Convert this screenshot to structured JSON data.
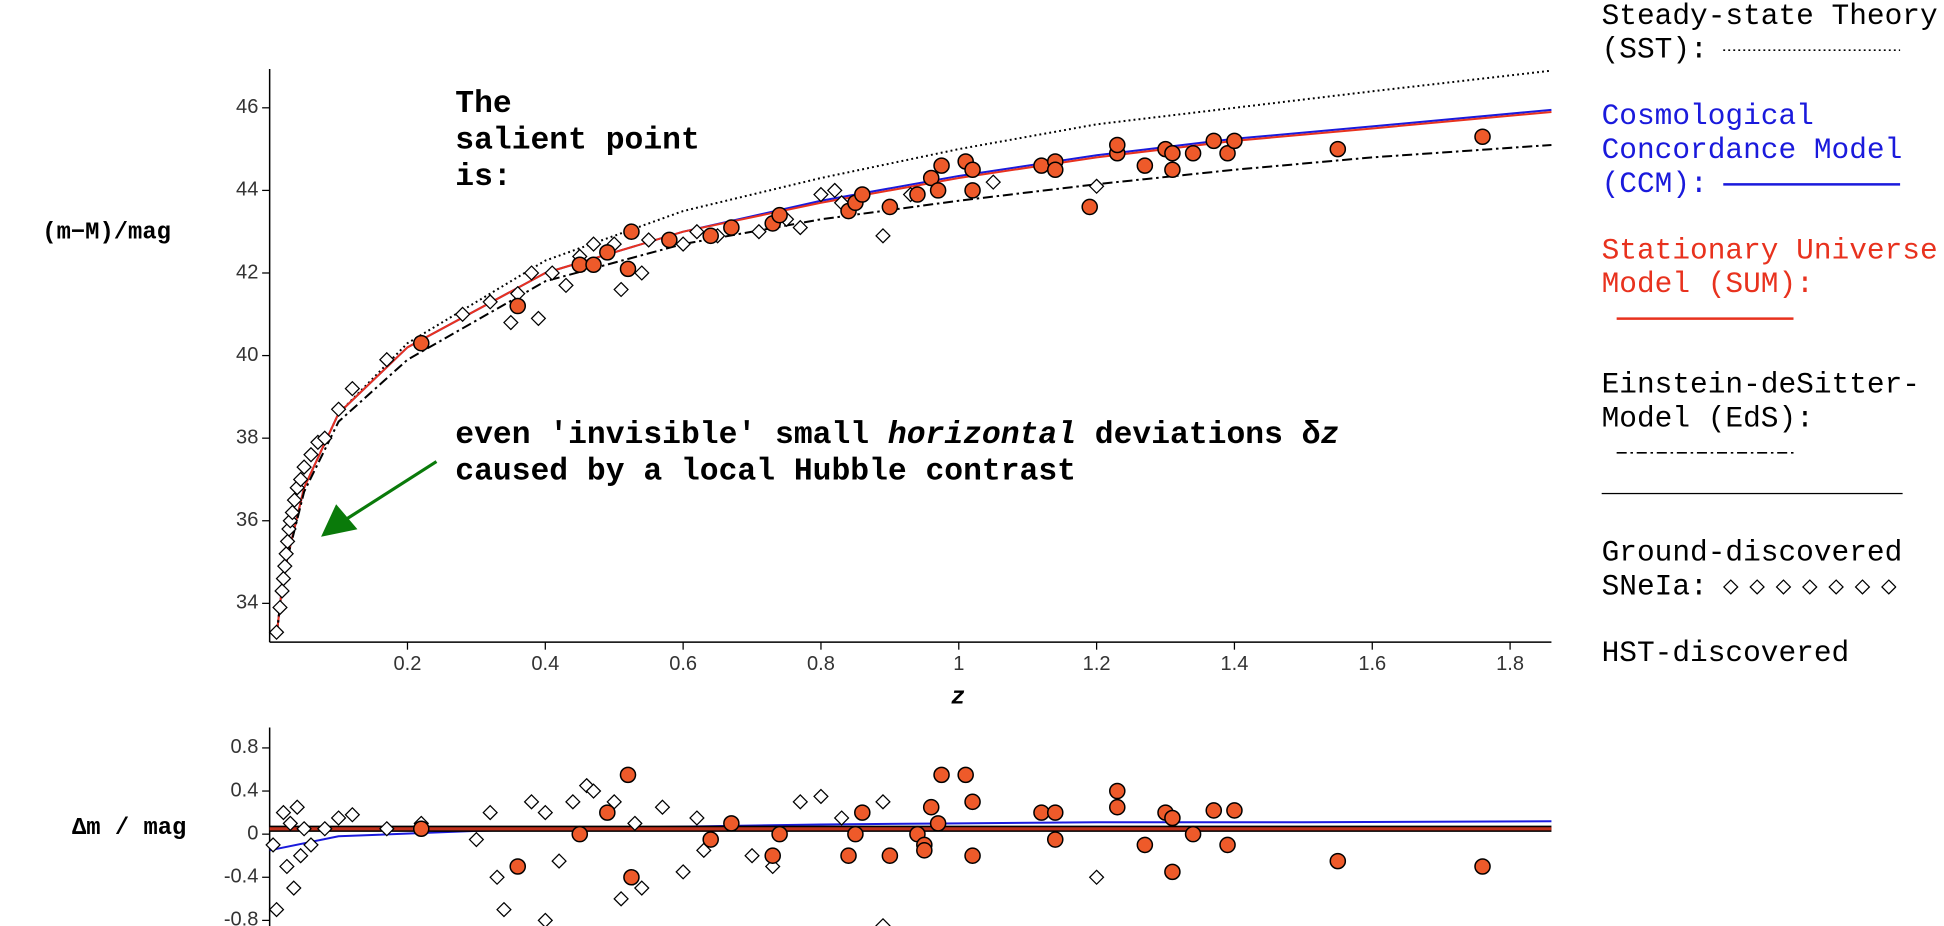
{
  "chart_data": [
    {
      "type": "scatter",
      "xlabel": "z",
      "ylabel": "(m−M)/mag",
      "xlim": [
        0,
        1.86
      ],
      "ylim": [
        33.06,
        46.94
      ],
      "xticks": [
        0.2,
        0.4,
        0.6,
        0.8,
        1,
        1.2,
        1.4,
        1.6,
        1.8
      ],
      "yticks": [
        34,
        36,
        38,
        40,
        42,
        44,
        46
      ],
      "annotations": [
        {
          "lines": [
            [
              {
                "text": "The"
              }
            ],
            [
              {
                "text": "salient point"
              }
            ],
            [
              {
                "text": "is:"
              }
            ]
          ]
        },
        {
          "lines": [
            [
              {
                "text": "even 'invisible' small "
              },
              {
                "text": "horizontal",
                "italic": true
              },
              {
                "text": " deviations δ"
              },
              {
                "text": "z",
                "italic": true
              }
            ],
            [
              {
                "text": "caused by a local Hubble contrast"
              }
            ]
          ]
        }
      ],
      "series": [
        {
          "name": "Steady-state Theory (SST):",
          "color": "#000000",
          "dash": "dotted",
          "x": [
            0.01,
            0.02,
            0.05,
            0.1,
            0.2,
            0.4,
            0.6,
            0.8,
            1.0,
            1.2,
            1.4,
            1.6,
            1.86
          ],
          "values": [
            33.2,
            34.7,
            36.8,
            38.6,
            40.3,
            42.3,
            43.5,
            44.3,
            45.0,
            45.6,
            46.0,
            46.4,
            46.9
          ]
        },
        {
          "name": "Cosmological Concordance Model (CCM):",
          "color": "#1a1adc",
          "dash": "solid",
          "x": [
            0.01,
            0.02,
            0.05,
            0.1,
            0.2,
            0.4,
            0.6,
            0.8,
            1.0,
            1.2,
            1.4,
            1.6,
            1.86
          ],
          "values": [
            33.2,
            34.7,
            36.8,
            38.6,
            40.2,
            42.0,
            43.0,
            43.75,
            44.35,
            44.85,
            45.25,
            45.55,
            45.95
          ]
        },
        {
          "name": "Stationary Universe Model (SUM):",
          "color": "#e8321e",
          "dash": "solid",
          "x": [
            0.01,
            0.02,
            0.05,
            0.1,
            0.2,
            0.4,
            0.6,
            0.8,
            1.0,
            1.2,
            1.4,
            1.6,
            1.86
          ],
          "values": [
            33.2,
            34.7,
            36.8,
            38.6,
            40.2,
            42.0,
            43.0,
            43.7,
            44.3,
            44.8,
            45.2,
            45.5,
            45.9
          ]
        },
        {
          "name": "Einstein-deSitter-Model (EdS):",
          "color": "#000000",
          "dash": "dashdot",
          "x": [
            0.01,
            0.02,
            0.05,
            0.1,
            0.2,
            0.4,
            0.6,
            0.8,
            1.0,
            1.2,
            1.4,
            1.6,
            1.86
          ],
          "values": [
            33.2,
            34.7,
            36.7,
            38.4,
            39.9,
            41.8,
            42.7,
            43.3,
            43.75,
            44.15,
            44.5,
            44.8,
            45.1
          ]
        },
        {
          "name": "Ground-discovered SNeIa:",
          "color": "#000000",
          "marker": "diamond",
          "x": [
            0.01,
            0.015,
            0.018,
            0.02,
            0.022,
            0.024,
            0.026,
            0.028,
            0.03,
            0.033,
            0.036,
            0.04,
            0.045,
            0.05,
            0.06,
            0.07,
            0.08,
            0.1,
            0.12,
            0.17,
            0.28,
            0.32,
            0.35,
            0.36,
            0.38,
            0.39,
            0.41,
            0.43,
            0.45,
            0.47,
            0.5,
            0.51,
            0.54,
            0.55,
            0.6,
            0.62,
            0.65,
            0.71,
            0.75,
            0.77,
            0.8,
            0.82,
            0.83,
            0.89,
            0.93,
            1.05,
            1.2
          ],
          "values": [
            33.3,
            33.9,
            34.3,
            34.6,
            34.9,
            35.2,
            35.5,
            35.8,
            36.0,
            36.2,
            36.5,
            36.8,
            37.0,
            37.3,
            37.6,
            37.9,
            38.0,
            38.7,
            39.2,
            39.9,
            41.0,
            41.3,
            40.8,
            41.5,
            42.0,
            40.9,
            42.0,
            41.7,
            42.4,
            42.7,
            42.7,
            41.6,
            42.0,
            42.8,
            42.7,
            43.0,
            42.9,
            43.0,
            43.3,
            43.1,
            43.9,
            44.0,
            43.7,
            42.9,
            43.9,
            44.2,
            44.1
          ]
        },
        {
          "name": "HST-discovered SNeIa:",
          "color": "#ee5a2a",
          "marker": "circle",
          "x": [
            0.22,
            0.36,
            0.45,
            0.47,
            0.49,
            0.52,
            0.525,
            0.58,
            0.64,
            0.67,
            0.73,
            0.74,
            0.84,
            0.85,
            0.86,
            0.9,
            0.94,
            0.96,
            0.97,
            0.975,
            1.01,
            1.02,
            1.02,
            1.12,
            1.14,
            1.14,
            1.19,
            1.23,
            1.23,
            1.27,
            1.3,
            1.31,
            1.31,
            1.34,
            1.37,
            1.39,
            1.4,
            1.55,
            1.76
          ],
          "values": [
            40.3,
            41.2,
            42.2,
            42.2,
            42.5,
            42.1,
            43.0,
            42.8,
            42.9,
            43.1,
            43.2,
            43.4,
            43.5,
            43.7,
            43.9,
            43.6,
            43.9,
            44.3,
            44.0,
            44.6,
            44.7,
            44.5,
            44.0,
            44.6,
            44.7,
            44.5,
            43.6,
            44.9,
            45.1,
            44.6,
            45.0,
            44.5,
            44.9,
            44.9,
            45.2,
            44.9,
            45.2,
            45.0,
            45.3
          ]
        }
      ]
    },
    {
      "type": "scatter",
      "ylabel": "Δm / mag",
      "xlim": [
        0,
        1.86
      ],
      "ylim": [
        -0.93,
        0.99
      ],
      "yticks": [
        0.8,
        0.4,
        0,
        -0.4,
        -0.8
      ],
      "series": [
        {
          "color": "#1a1adc",
          "dash": "solid",
          "x": [
            0,
            0.1,
            0.3,
            0.5,
            0.8,
            1.0,
            1.2,
            1.5,
            1.86
          ],
          "values": [
            -0.15,
            -0.02,
            0.03,
            0.06,
            0.09,
            0.1,
            0.11,
            0.11,
            0.12
          ]
        },
        {
          "color": "#c0301a",
          "dash": "solid",
          "thick": true,
          "x": [
            0,
            0.1,
            0.3,
            0.5,
            0.8,
            1.0,
            1.2,
            1.5,
            1.86
          ],
          "values": [
            0.05,
            0.05,
            0.05,
            0.05,
            0.05,
            0.05,
            0.05,
            0.05,
            0.05
          ]
        },
        {
          "color": "#000000",
          "marker": "diamond",
          "x": [
            0.005,
            0.01,
            0.02,
            0.025,
            0.03,
            0.035,
            0.04,
            0.045,
            0.05,
            0.06,
            0.08,
            0.1,
            0.12,
            0.17,
            0.22,
            0.3,
            0.32,
            0.33,
            0.34,
            0.38,
            0.4,
            0.4,
            0.42,
            0.44,
            0.46,
            0.47,
            0.5,
            0.51,
            0.53,
            0.54,
            0.57,
            0.6,
            0.62,
            0.63,
            0.7,
            0.73,
            0.77,
            0.8,
            0.83,
            0.89,
            0.89,
            1.2
          ],
          "values": [
            -0.1,
            -0.7,
            0.2,
            -0.3,
            0.1,
            -0.5,
            0.25,
            -0.2,
            0.05,
            -0.1,
            0.05,
            0.15,
            0.18,
            0.05,
            0.1,
            -0.05,
            0.2,
            -0.4,
            -0.7,
            0.3,
            0.2,
            -0.8,
            -0.25,
            0.3,
            0.45,
            0.4,
            0.3,
            -0.6,
            0.1,
            -0.5,
            0.25,
            -0.35,
            0.15,
            -0.15,
            -0.2,
            -0.3,
            0.3,
            0.35,
            0.15,
            0.3,
            -0.85,
            -0.4
          ]
        },
        {
          "color": "#ee5a2a",
          "marker": "circle",
          "x": [
            0.22,
            0.36,
            0.45,
            0.49,
            0.52,
            0.525,
            0.64,
            0.67,
            0.73,
            0.74,
            0.84,
            0.85,
            0.86,
            0.9,
            0.94,
            0.95,
            0.95,
            0.96,
            0.97,
            0.975,
            1.01,
            1.02,
            1.02,
            1.12,
            1.14,
            1.14,
            1.23,
            1.23,
            1.27,
            1.3,
            1.31,
            1.31,
            1.34,
            1.37,
            1.39,
            1.4,
            1.55,
            1.76
          ],
          "values": [
            0.05,
            -0.3,
            0.0,
            0.2,
            0.55,
            -0.4,
            -0.05,
            0.1,
            -0.2,
            0.0,
            -0.2,
            0.0,
            0.2,
            -0.2,
            0.0,
            -0.1,
            -0.15,
            0.25,
            0.1,
            0.55,
            0.55,
            0.3,
            -0.2,
            0.2,
            0.2,
            -0.05,
            0.4,
            0.25,
            -0.1,
            0.2,
            -0.35,
            0.15,
            0.0,
            0.22,
            -0.1,
            0.22,
            -0.25,
            -0.3
          ]
        }
      ]
    }
  ]
}
